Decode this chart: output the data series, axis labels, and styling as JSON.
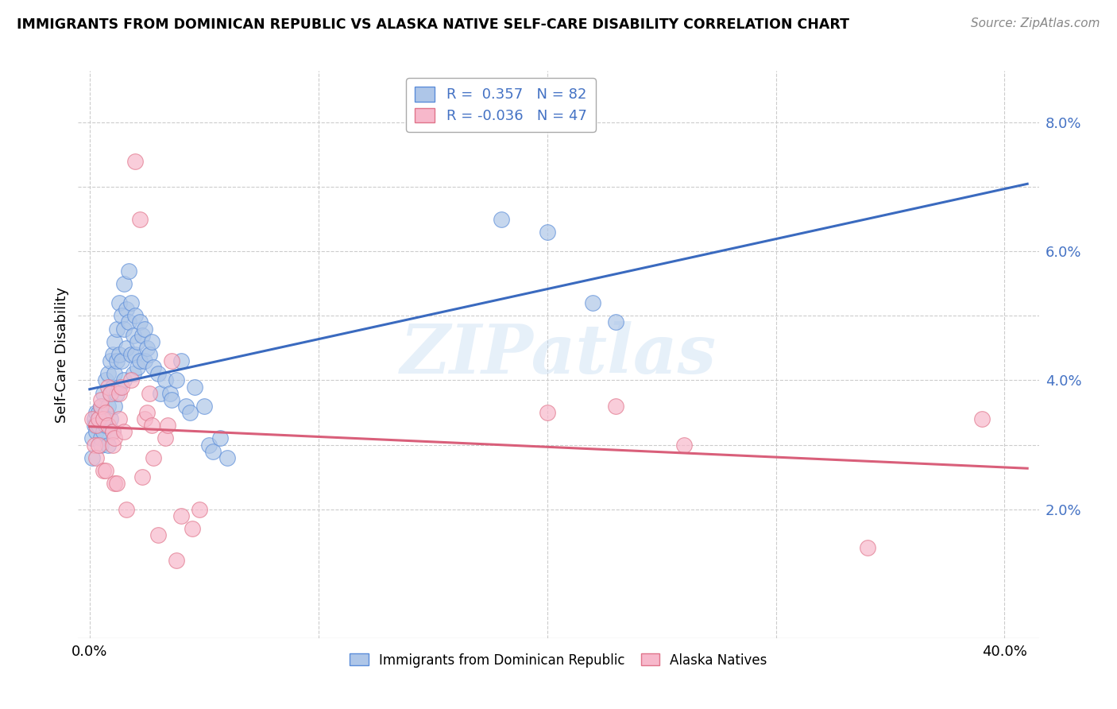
{
  "title": "IMMIGRANTS FROM DOMINICAN REPUBLIC VS ALASKA NATIVE SELF-CARE DISABILITY CORRELATION CHART",
  "source": "Source: ZipAtlas.com",
  "ylabel": "Self-Care Disability",
  "legend_label1": "Immigrants from Dominican Republic",
  "legend_label2": "Alaska Natives",
  "color_blue": "#aec6e8",
  "color_pink": "#f7b8cb",
  "edge_color_blue": "#5b8dd9",
  "edge_color_pink": "#e0748a",
  "line_color_blue": "#3a6abf",
  "line_color_pink": "#d95f7a",
  "tick_color_blue": "#4472c4",
  "watermark": "ZIPatlas",
  "xlim": [
    -0.005,
    0.415
  ],
  "ylim": [
    0.0,
    0.088
  ],
  "yticks": [
    0.02,
    0.03,
    0.04,
    0.05,
    0.06,
    0.07,
    0.08
  ],
  "ytick_labels": [
    "2.0%",
    "",
    "4.0%",
    "",
    "6.0%",
    "",
    "8.0%"
  ],
  "xticks": [
    0.0,
    0.1,
    0.2,
    0.3,
    0.4
  ],
  "xtick_labels": [
    "0.0%",
    "",
    "",
    "",
    "40.0%"
  ],
  "blue_scatter": [
    [
      0.001,
      0.031
    ],
    [
      0.001,
      0.028
    ],
    [
      0.002,
      0.034
    ],
    [
      0.002,
      0.033
    ],
    [
      0.003,
      0.033
    ],
    [
      0.003,
      0.035
    ],
    [
      0.003,
      0.032
    ],
    [
      0.004,
      0.034
    ],
    [
      0.004,
      0.033
    ],
    [
      0.004,
      0.035
    ],
    [
      0.005,
      0.036
    ],
    [
      0.005,
      0.031
    ],
    [
      0.005,
      0.03
    ],
    [
      0.006,
      0.038
    ],
    [
      0.006,
      0.034
    ],
    [
      0.006,
      0.032
    ],
    [
      0.007,
      0.04
    ],
    [
      0.007,
      0.035
    ],
    [
      0.007,
      0.033
    ],
    [
      0.008,
      0.041
    ],
    [
      0.008,
      0.036
    ],
    [
      0.008,
      0.03
    ],
    [
      0.009,
      0.043
    ],
    [
      0.009,
      0.038
    ],
    [
      0.009,
      0.034
    ],
    [
      0.01,
      0.044
    ],
    [
      0.01,
      0.039
    ],
    [
      0.01,
      0.032
    ],
    [
      0.011,
      0.046
    ],
    [
      0.011,
      0.041
    ],
    [
      0.011,
      0.036
    ],
    [
      0.012,
      0.048
    ],
    [
      0.012,
      0.043
    ],
    [
      0.012,
      0.038
    ],
    [
      0.013,
      0.052
    ],
    [
      0.013,
      0.044
    ],
    [
      0.013,
      0.039
    ],
    [
      0.014,
      0.05
    ],
    [
      0.014,
      0.043
    ],
    [
      0.015,
      0.055
    ],
    [
      0.015,
      0.048
    ],
    [
      0.015,
      0.04
    ],
    [
      0.016,
      0.051
    ],
    [
      0.016,
      0.045
    ],
    [
      0.017,
      0.057
    ],
    [
      0.017,
      0.049
    ],
    [
      0.018,
      0.052
    ],
    [
      0.018,
      0.044
    ],
    [
      0.019,
      0.047
    ],
    [
      0.019,
      0.041
    ],
    [
      0.02,
      0.05
    ],
    [
      0.02,
      0.044
    ],
    [
      0.021,
      0.046
    ],
    [
      0.021,
      0.042
    ],
    [
      0.022,
      0.049
    ],
    [
      0.022,
      0.043
    ],
    [
      0.023,
      0.047
    ],
    [
      0.024,
      0.048
    ],
    [
      0.024,
      0.043
    ],
    [
      0.025,
      0.045
    ],
    [
      0.026,
      0.044
    ],
    [
      0.027,
      0.046
    ],
    [
      0.028,
      0.042
    ],
    [
      0.03,
      0.041
    ],
    [
      0.031,
      0.038
    ],
    [
      0.033,
      0.04
    ],
    [
      0.035,
      0.038
    ],
    [
      0.036,
      0.037
    ],
    [
      0.038,
      0.04
    ],
    [
      0.04,
      0.043
    ],
    [
      0.042,
      0.036
    ],
    [
      0.044,
      0.035
    ],
    [
      0.046,
      0.039
    ],
    [
      0.05,
      0.036
    ],
    [
      0.052,
      0.03
    ],
    [
      0.054,
      0.029
    ],
    [
      0.057,
      0.031
    ],
    [
      0.06,
      0.028
    ],
    [
      0.18,
      0.065
    ],
    [
      0.2,
      0.063
    ],
    [
      0.22,
      0.052
    ],
    [
      0.23,
      0.049
    ]
  ],
  "pink_scatter": [
    [
      0.001,
      0.034
    ],
    [
      0.002,
      0.03
    ],
    [
      0.003,
      0.028
    ],
    [
      0.003,
      0.033
    ],
    [
      0.004,
      0.034
    ],
    [
      0.004,
      0.03
    ],
    [
      0.005,
      0.036
    ],
    [
      0.005,
      0.037
    ],
    [
      0.006,
      0.034
    ],
    [
      0.006,
      0.026
    ],
    [
      0.007,
      0.035
    ],
    [
      0.007,
      0.026
    ],
    [
      0.008,
      0.033
    ],
    [
      0.008,
      0.039
    ],
    [
      0.009,
      0.038
    ],
    [
      0.01,
      0.032
    ],
    [
      0.01,
      0.03
    ],
    [
      0.011,
      0.031
    ],
    [
      0.011,
      0.024
    ],
    [
      0.012,
      0.024
    ],
    [
      0.013,
      0.038
    ],
    [
      0.013,
      0.034
    ],
    [
      0.014,
      0.039
    ],
    [
      0.015,
      0.032
    ],
    [
      0.016,
      0.02
    ],
    [
      0.018,
      0.04
    ],
    [
      0.02,
      0.074
    ],
    [
      0.022,
      0.065
    ],
    [
      0.023,
      0.025
    ],
    [
      0.024,
      0.034
    ],
    [
      0.025,
      0.035
    ],
    [
      0.026,
      0.038
    ],
    [
      0.027,
      0.033
    ],
    [
      0.028,
      0.028
    ],
    [
      0.03,
      0.016
    ],
    [
      0.033,
      0.031
    ],
    [
      0.034,
      0.033
    ],
    [
      0.036,
      0.043
    ],
    [
      0.038,
      0.012
    ],
    [
      0.04,
      0.019
    ],
    [
      0.045,
      0.017
    ],
    [
      0.048,
      0.02
    ],
    [
      0.2,
      0.035
    ],
    [
      0.23,
      0.036
    ],
    [
      0.26,
      0.03
    ],
    [
      0.34,
      0.014
    ],
    [
      0.39,
      0.034
    ]
  ]
}
